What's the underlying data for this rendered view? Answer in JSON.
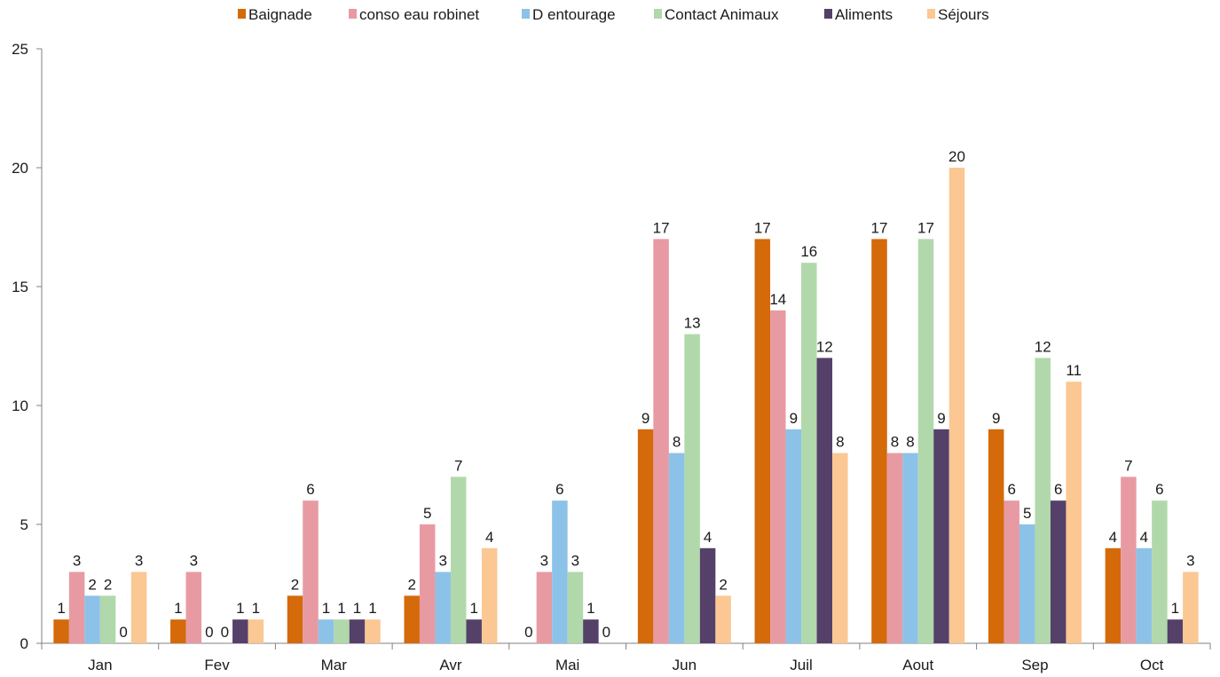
{
  "chart_data": {
    "type": "bar",
    "title": "",
    "xlabel": "",
    "ylabel": "",
    "ylim": [
      0,
      25
    ],
    "yticks": [
      "0",
      "5",
      "10",
      "15",
      "20",
      "25"
    ],
    "grid": false,
    "legend_position": "top",
    "categories": [
      "Jan",
      "Fev",
      "Mar",
      "Avr",
      "Mai",
      "Jun",
      "Juil",
      "Aout",
      "Sep",
      "Oct"
    ],
    "series": [
      {
        "name": "Baignade",
        "color": "#d46a0a",
        "values": [
          1,
          1,
          2,
          2,
          0,
          9,
          17,
          17,
          9,
          4
        ]
      },
      {
        "name": "conso eau robinet",
        "color": "#e89aa2",
        "values": [
          3,
          3,
          6,
          5,
          3,
          17,
          14,
          8,
          6,
          7
        ]
      },
      {
        "name": "D entourage",
        "color": "#8cc2e8",
        "values": [
          2,
          0,
          1,
          3,
          6,
          8,
          9,
          8,
          5,
          4
        ]
      },
      {
        "name": "Contact Animaux",
        "color": "#b1d8ab",
        "values": [
          2,
          0,
          1,
          7,
          3,
          13,
          16,
          17,
          12,
          6
        ]
      },
      {
        "name": "Aliments",
        "color": "#55406a",
        "values": [
          0,
          1,
          1,
          1,
          1,
          4,
          12,
          9,
          6,
          1
        ]
      },
      {
        "name": "Séjours",
        "color": "#fbc793",
        "values": [
          3,
          1,
          1,
          4,
          0,
          2,
          8,
          20,
          11,
          3
        ]
      }
    ]
  }
}
